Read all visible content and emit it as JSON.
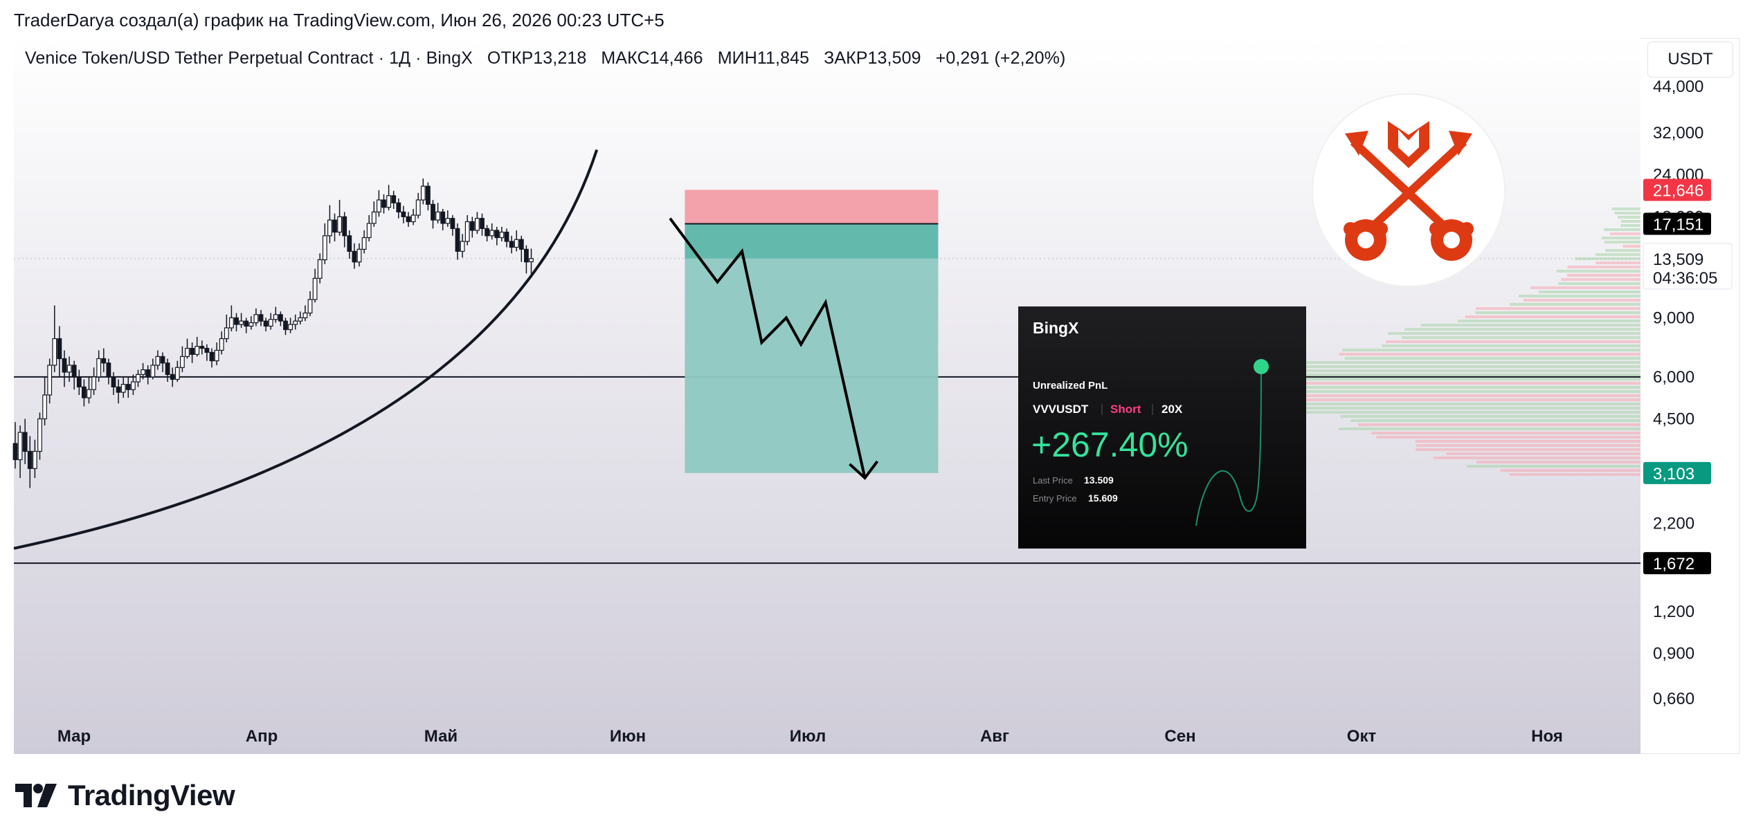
{
  "header": {
    "attribution": "TraderDarya создал(а) график на TradingView.com, Июн 26, 2026 00:23 UTC+5"
  },
  "legend": {
    "symbol": "Venice Token/USD Tether Perpetual Contract · 1Д · BingX",
    "open": "ОТКР13,218",
    "high": "МАКС14,466",
    "low": "МИН11,845",
    "close": "ЗАКР13,509",
    "change": "+0,291 (+2,20%)"
  },
  "currency": "USDT",
  "footer": {
    "brand": "TradingView"
  },
  "colors": {
    "bg_top": "#ffffff",
    "bg_bottom": "#cfccd9",
    "up": "#ffffff",
    "down": "#131722",
    "stop_zone": "#f29ca6",
    "profit_zone": "#8ec8c1",
    "profit_zone_upper": "#5bb5a6",
    "badge_red": "#f23645",
    "badge_green": "#089981",
    "badge_black": "#000000",
    "pnl_green": "#34e39b",
    "pnl_short": "#ff3d86"
  },
  "chart_data": {
    "type": "candlestick",
    "scale": "log",
    "x_labels": [
      "Мар",
      "Апр",
      "Май",
      "Июн",
      "Июл",
      "Авг",
      "Сен",
      "Окт",
      "Ноя"
    ],
    "y_axis_labels": [
      {
        "label": "44,000",
        "value": 44
      },
      {
        "label": "32,000",
        "value": 32
      },
      {
        "label": "24,000",
        "value": 24
      },
      {
        "label": "18,000",
        "value": 18
      },
      {
        "label": "9,000",
        "value": 9
      },
      {
        "label": "6,000",
        "value": 6
      },
      {
        "label": "4,500",
        "value": 4.5
      },
      {
        "label": "2,200",
        "value": 2.2
      },
      {
        "label": "1,200",
        "value": 1.2
      },
      {
        "label": "0,900",
        "value": 0.9
      },
      {
        "label": "0,660",
        "value": 0.66
      }
    ],
    "price_badges": [
      {
        "label": "21,646",
        "value": 21.646,
        "style": "red"
      },
      {
        "label": "17,151",
        "value": 17.151,
        "style": "black"
      },
      {
        "label": "3,103",
        "value": 3.103,
        "style": "green"
      },
      {
        "label": "1,672",
        "value": 1.672,
        "style": "black"
      }
    ],
    "current_price": {
      "label": "13,509",
      "value": 13.509,
      "countdown": "04:36:05"
    },
    "horizontal_lines": [
      6.0,
      1.672
    ],
    "position": {
      "side": "short",
      "entry": 17.151,
      "stop": 21.646,
      "target": 3.103,
      "start_date_index": 89,
      "end_date_index": 132
    },
    "projection_path": [
      [
        89,
        17.8
      ],
      [
        95,
        11.5
      ],
      [
        100,
        14.2
      ],
      [
        104,
        7.6
      ],
      [
        109,
        9.0
      ],
      [
        112,
        7.5
      ],
      [
        117,
        10.0
      ],
      [
        125,
        3.0
      ]
    ],
    "parabola": {
      "start": [
        0,
        1.85
      ],
      "end": [
        97,
        28.5
      ]
    },
    "candles": [
      [
        3.8,
        3.4,
        4.4,
        3.2
      ],
      [
        3.4,
        4.1,
        4.3,
        3.0
      ],
      [
        4.1,
        3.6,
        4.5,
        3.3
      ],
      [
        3.6,
        3.2,
        4.0,
        2.8
      ],
      [
        3.2,
        3.6,
        3.9,
        3.0
      ],
      [
        3.6,
        4.5,
        4.7,
        3.4
      ],
      [
        4.5,
        5.3,
        6.0,
        4.3
      ],
      [
        5.3,
        6.5,
        6.8,
        5.0
      ],
      [
        6.5,
        7.8,
        9.8,
        6.2
      ],
      [
        7.8,
        6.8,
        8.5,
        6.0
      ],
      [
        6.8,
        6.2,
        7.2,
        5.6
      ],
      [
        6.2,
        6.5,
        6.9,
        5.8
      ],
      [
        6.5,
        6.0,
        6.7,
        5.5
      ],
      [
        6.0,
        5.6,
        6.3,
        5.3
      ],
      [
        5.6,
        5.2,
        5.9,
        4.9
      ],
      [
        5.2,
        5.5,
        6.0,
        5.0
      ],
      [
        5.5,
        6.0,
        6.4,
        5.3
      ],
      [
        6.0,
        6.8,
        7.2,
        5.8
      ],
      [
        6.8,
        6.6,
        7.3,
        6.2
      ],
      [
        6.6,
        6.0,
        6.8,
        5.7
      ],
      [
        6.0,
        5.6,
        6.2,
        5.3
      ],
      [
        5.6,
        5.4,
        5.9,
        5.0
      ],
      [
        5.4,
        5.7,
        6.0,
        5.2
      ],
      [
        5.7,
        5.5,
        6.0,
        5.2
      ],
      [
        5.5,
        5.8,
        6.1,
        5.3
      ],
      [
        5.8,
        6.1,
        6.3,
        5.6
      ],
      [
        6.1,
        6.3,
        6.6,
        5.9
      ],
      [
        6.3,
        6.0,
        6.5,
        5.7
      ],
      [
        6.0,
        6.5,
        6.8,
        5.9
      ],
      [
        6.5,
        6.9,
        7.2,
        6.3
      ],
      [
        6.9,
        6.6,
        7.1,
        6.2
      ],
      [
        6.6,
        6.1,
        6.8,
        5.8
      ],
      [
        6.1,
        5.9,
        6.4,
        5.6
      ],
      [
        5.9,
        6.4,
        6.7,
        5.8
      ],
      [
        6.4,
        6.9,
        7.4,
        6.2
      ],
      [
        6.9,
        7.3,
        7.8,
        6.8
      ],
      [
        7.3,
        7.0,
        7.6,
        6.6
      ],
      [
        7.0,
        7.4,
        7.9,
        6.9
      ],
      [
        7.4,
        7.3,
        7.7,
        7.0
      ],
      [
        7.3,
        7.1,
        7.5,
        6.7
      ],
      [
        7.1,
        6.7,
        7.3,
        6.4
      ],
      [
        6.7,
        7.2,
        7.6,
        6.5
      ],
      [
        7.2,
        7.8,
        8.2,
        7.0
      ],
      [
        7.8,
        8.4,
        9.2,
        7.6
      ],
      [
        8.4,
        9.0,
        9.8,
        8.2
      ],
      [
        9.0,
        8.6,
        9.3,
        8.2
      ],
      [
        8.6,
        8.8,
        9.3,
        8.4
      ],
      [
        8.8,
        8.5,
        9.0,
        8.1
      ],
      [
        8.5,
        8.7,
        9.1,
        8.3
      ],
      [
        8.7,
        9.2,
        9.6,
        8.5
      ],
      [
        9.2,
        8.8,
        9.5,
        8.5
      ],
      [
        8.8,
        8.5,
        9.0,
        8.2
      ],
      [
        8.5,
        8.9,
        9.3,
        8.3
      ],
      [
        8.9,
        9.2,
        9.7,
        8.7
      ],
      [
        9.2,
        8.8,
        9.4,
        8.5
      ],
      [
        8.8,
        8.3,
        9.0,
        8.0
      ],
      [
        8.3,
        8.6,
        9.0,
        8.1
      ],
      [
        8.6,
        8.8,
        9.2,
        8.3
      ],
      [
        8.8,
        9.0,
        9.4,
        8.6
      ],
      [
        9.0,
        9.3,
        9.8,
        8.8
      ],
      [
        9.3,
        10.2,
        10.8,
        9.1
      ],
      [
        10.2,
        11.8,
        12.6,
        10.0
      ],
      [
        11.8,
        13.4,
        14.0,
        11.4
      ],
      [
        13.4,
        15.8,
        17.2,
        13.0
      ],
      [
        15.8,
        17.6,
        19.5,
        15.0
      ],
      [
        17.6,
        16.2,
        18.4,
        15.2
      ],
      [
        16.2,
        18.0,
        20.2,
        15.8
      ],
      [
        18.0,
        15.8,
        18.6,
        14.6
      ],
      [
        15.8,
        14.2,
        16.4,
        13.5
      ],
      [
        14.2,
        13.2,
        15.0,
        12.6
      ],
      [
        13.2,
        14.4,
        15.0,
        12.8
      ],
      [
        14.4,
        15.6,
        16.4,
        14.0
      ],
      [
        15.6,
        17.2,
        18.2,
        15.2
      ],
      [
        17.2,
        18.6,
        20.0,
        16.8
      ],
      [
        18.6,
        20.2,
        21.6,
        18.0
      ],
      [
        20.2,
        19.2,
        21.0,
        18.4
      ],
      [
        19.2,
        20.8,
        22.4,
        18.8
      ],
      [
        20.8,
        19.8,
        21.5,
        19.0
      ],
      [
        19.8,
        18.6,
        20.4,
        17.8
      ],
      [
        18.6,
        18.0,
        19.4,
        17.2
      ],
      [
        18.0,
        17.4,
        18.6,
        16.8
      ],
      [
        17.4,
        18.2,
        19.0,
        17.0
      ],
      [
        18.2,
        20.2,
        21.2,
        17.8
      ],
      [
        20.2,
        22.2,
        23.4,
        19.6
      ],
      [
        22.2,
        19.6,
        22.8,
        18.8
      ],
      [
        19.6,
        17.6,
        20.2,
        16.6
      ],
      [
        17.6,
        18.6,
        19.8,
        17.2
      ],
      [
        18.6,
        17.2,
        19.0,
        16.4
      ],
      [
        17.2,
        17.8,
        18.8,
        16.8
      ],
      [
        17.8,
        16.6,
        18.2,
        15.8
      ],
      [
        16.6,
        14.2,
        17.2,
        13.4
      ],
      [
        14.2,
        15.2,
        16.0,
        13.6
      ],
      [
        15.2,
        17.4,
        18.2,
        14.8
      ],
      [
        17.4,
        16.4,
        18.0,
        15.6
      ],
      [
        16.4,
        17.8,
        18.6,
        16.0
      ],
      [
        17.8,
        16.6,
        18.4,
        15.8
      ],
      [
        16.6,
        15.8,
        17.0,
        15.2
      ],
      [
        15.8,
        16.4,
        17.2,
        15.4
      ],
      [
        16.4,
        15.6,
        16.8,
        14.8
      ],
      [
        15.6,
        16.2,
        16.8,
        15.2
      ],
      [
        16.2,
        15.2,
        16.6,
        14.6
      ],
      [
        15.2,
        14.6,
        15.8,
        14.0
      ],
      [
        14.6,
        15.4,
        16.4,
        14.2
      ],
      [
        15.4,
        14.4,
        15.8,
        13.2
      ],
      [
        14.4,
        13.2,
        14.8,
        12.2
      ],
      [
        13.218,
        13.509,
        14.466,
        11.845
      ]
    ]
  },
  "pnl_card": {
    "brand": "BingX",
    "title": "Unrealized PnL",
    "symbol": "VVVUSDT",
    "side": "Short",
    "leverage": "20X",
    "pnl": "+267.40%",
    "last_price_label": "Last Price",
    "last_price": "13.509",
    "entry_price_label": "Entry Price",
    "entry_price": "15.609"
  }
}
